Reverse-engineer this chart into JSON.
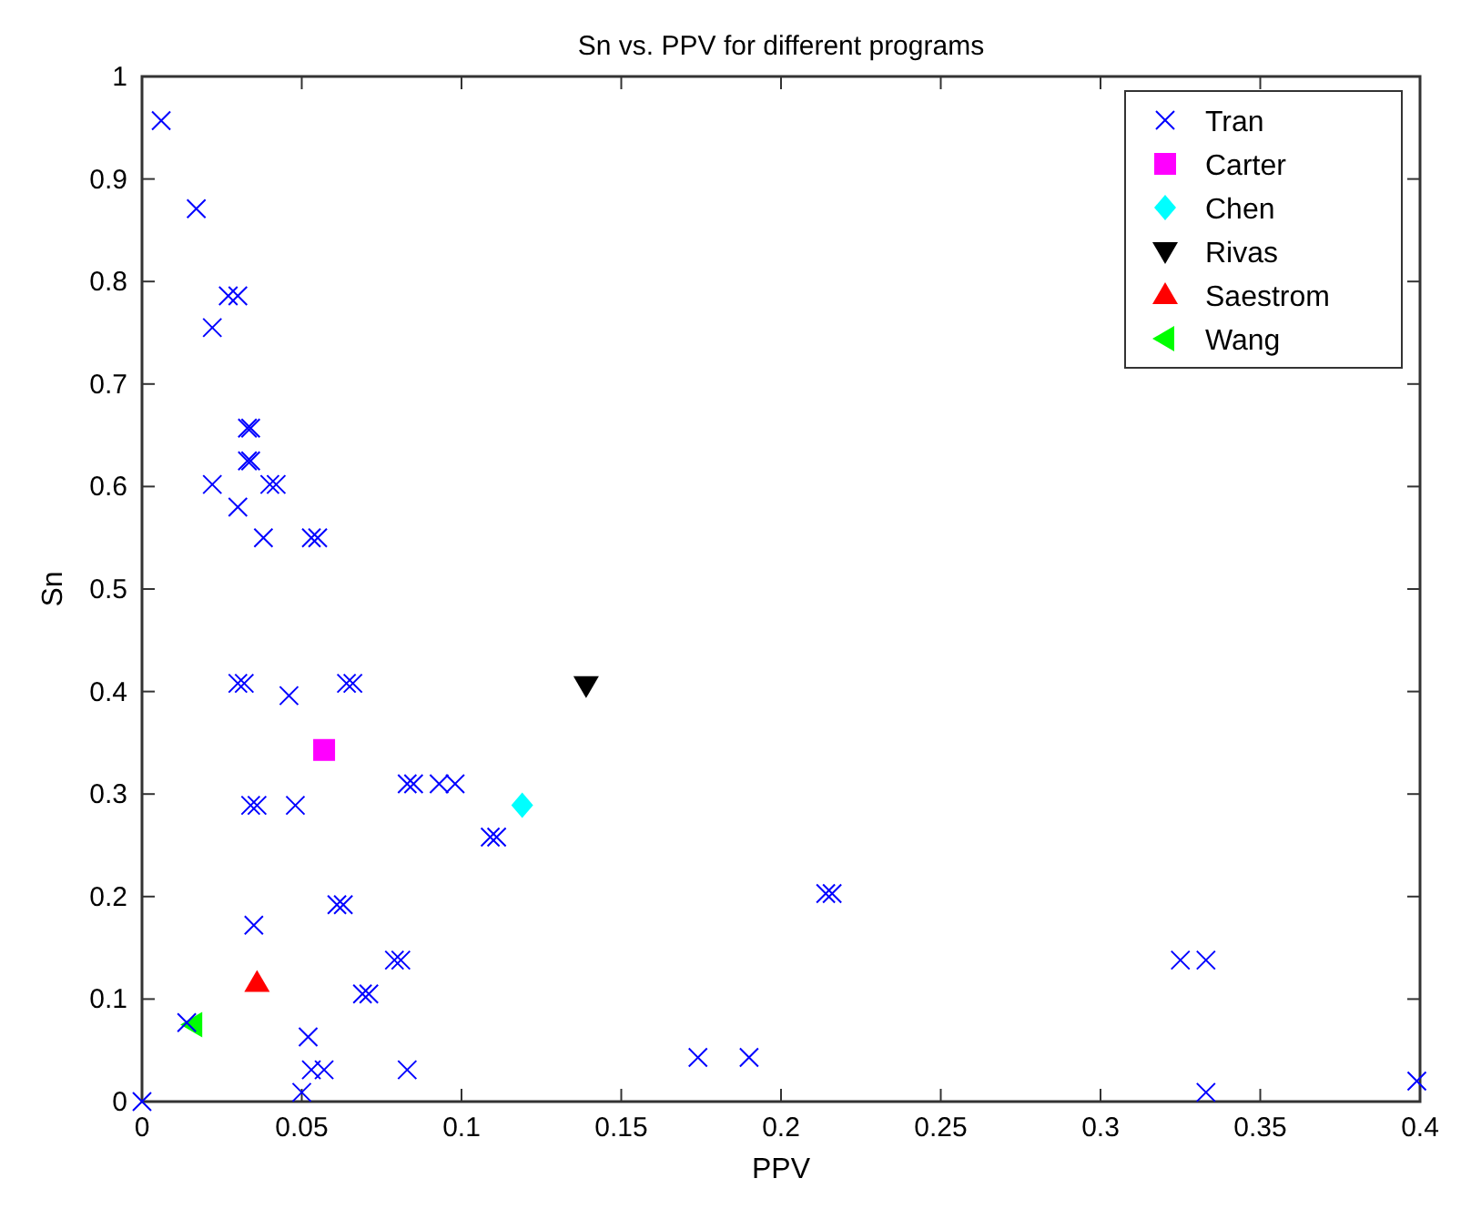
{
  "chart_data": {
    "type": "scatter",
    "title": "Sn vs. PPV for different programs",
    "xlabel": "PPV",
    "ylabel": "Sn",
    "xlim": [
      0,
      0.4
    ],
    "ylim": [
      0,
      1
    ],
    "xticks": [
      0,
      0.05,
      0.1,
      0.15,
      0.2,
      0.25,
      0.3,
      0.35,
      0.4
    ],
    "yticks": [
      0,
      0.1,
      0.2,
      0.3,
      0.4,
      0.5,
      0.6,
      0.7,
      0.8,
      0.9,
      1
    ],
    "grid": false,
    "legend": "top right",
    "series": [
      {
        "name": "Tran",
        "color": "#0000ff",
        "marker": "cross",
        "x": [
          0.006,
          0.017,
          0.027,
          0.03,
          0.022,
          0.033,
          0.034,
          0.033,
          0.034,
          0.022,
          0.04,
          0.042,
          0.03,
          0.038,
          0.053,
          0.055,
          0.03,
          0.032,
          0.046,
          0.064,
          0.066,
          0.083,
          0.085,
          0.093,
          0.098,
          0.034,
          0.036,
          0.048,
          0.109,
          0.111,
          0.061,
          0.063,
          0.035,
          0.079,
          0.081,
          0.069,
          0.071,
          0.014,
          0.052,
          0.053,
          0.057,
          0.083,
          0.05,
          0,
          0.214,
          0.216,
          0.174,
          0.19,
          0.325,
          0.333,
          0.333,
          0.399
        ],
        "values": [
          0.957,
          0.871,
          0.786,
          0.786,
          0.755,
          0.657,
          0.657,
          0.625,
          0.625,
          0.602,
          0.602,
          0.602,
          0.58,
          0.55,
          0.55,
          0.55,
          0.408,
          0.408,
          0.396,
          0.408,
          0.408,
          0.31,
          0.31,
          0.31,
          0.31,
          0.289,
          0.289,
          0.289,
          0.258,
          0.258,
          0.192,
          0.192,
          0.172,
          0.138,
          0.138,
          0.105,
          0.105,
          0.077,
          0.063,
          0.031,
          0.031,
          0.031,
          0.009,
          0,
          0.203,
          0.203,
          0.043,
          0.043,
          0.138,
          0.138,
          0.009,
          0.02
        ]
      },
      {
        "name": "Carter",
        "color": "#ff00ff",
        "marker": "square",
        "x": [
          0.057
        ],
        "values": [
          0.343
        ]
      },
      {
        "name": "Chen",
        "color": "#00ffff",
        "marker": "diamond",
        "x": [
          0.119
        ],
        "values": [
          0.289
        ]
      },
      {
        "name": "Rivas",
        "color": "#000000",
        "marker": "triangle-down",
        "x": [
          0.139
        ],
        "values": [
          0.406
        ]
      },
      {
        "name": "Saestrom",
        "color": "#ff0000",
        "marker": "triangle",
        "x": [
          0.036
        ],
        "values": [
          0.116
        ]
      },
      {
        "name": "Wang",
        "color": "#00ff00",
        "marker": "triangle-left",
        "x": [
          0.016
        ],
        "values": [
          0.075
        ]
      }
    ]
  }
}
